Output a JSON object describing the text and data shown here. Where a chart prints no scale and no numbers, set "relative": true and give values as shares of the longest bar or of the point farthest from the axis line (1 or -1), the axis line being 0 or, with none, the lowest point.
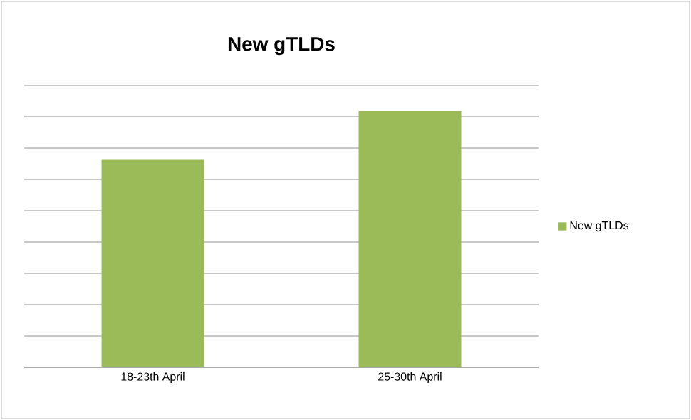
{
  "chart_data": {
    "type": "bar",
    "title": "New gTLDs",
    "categories": [
      "18-23th April",
      "25-30th April"
    ],
    "series": [
      {
        "name": "New gTLDs",
        "color": "#9bbb59",
        "values": [
          0.81,
          1
        ]
      }
    ],
    "relative": true,
    "grid": "y",
    "legend": "right"
  }
}
